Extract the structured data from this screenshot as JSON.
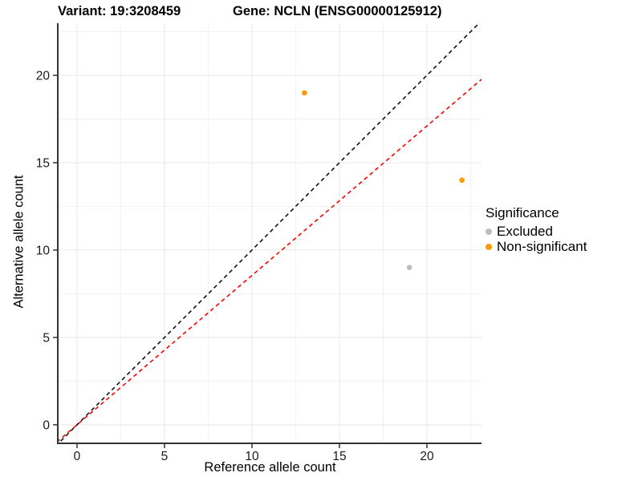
{
  "header": {
    "variant_title": "Variant: 19:3208459",
    "gene_title": "Gene: NCLN (ENSG00000125912)"
  },
  "chart_data": {
    "type": "scatter",
    "title_left": "Variant: 19:3208459",
    "title_right": "Gene: NCLN (ENSG00000125912)",
    "xlabel": "Reference allele count",
    "ylabel": "Alternative allele count",
    "xlim": [
      -1.1,
      23.12
    ],
    "ylim": [
      -1.06,
      22.98
    ],
    "x_ticks": [
      0,
      5,
      10,
      15,
      20
    ],
    "y_ticks": [
      0,
      5,
      10,
      15,
      20
    ],
    "x_minor_ticks": [
      2.5,
      7.5,
      12.5,
      17.5,
      22.5
    ],
    "y_minor_ticks": [
      2.5,
      7.5,
      12.5,
      17.5,
      22.5
    ],
    "grid": true,
    "series": [
      {
        "name": "Excluded",
        "color": "#BDBDBD",
        "points": [
          {
            "x": 19,
            "y": 9
          }
        ]
      },
      {
        "name": "Non-significant",
        "color": "#FB9A04",
        "points": [
          {
            "x": 13,
            "y": 19
          },
          {
            "x": 22,
            "y": 14
          }
        ]
      }
    ],
    "lines": [
      {
        "name": "identity-line",
        "slope": 1.0,
        "intercept": 0,
        "color": "#111111",
        "dash": "5,4"
      },
      {
        "name": "expected-ratio-line",
        "slope": 0.855,
        "intercept": 0,
        "color": "#FF0000",
        "dash": "5,4"
      }
    ],
    "legend": {
      "title": "Significance",
      "position": "right",
      "items": [
        {
          "label": "Excluded",
          "color": "#BDBDBD"
        },
        {
          "label": "Non-significant",
          "color": "#FB9A04"
        }
      ]
    },
    "colors": {
      "axis_line": "#333333",
      "tick_label": "#1A1A1A",
      "grid_major": "#E8E8E8",
      "grid_minor": "#F2F2F2",
      "background": "#FFFFFF"
    }
  }
}
